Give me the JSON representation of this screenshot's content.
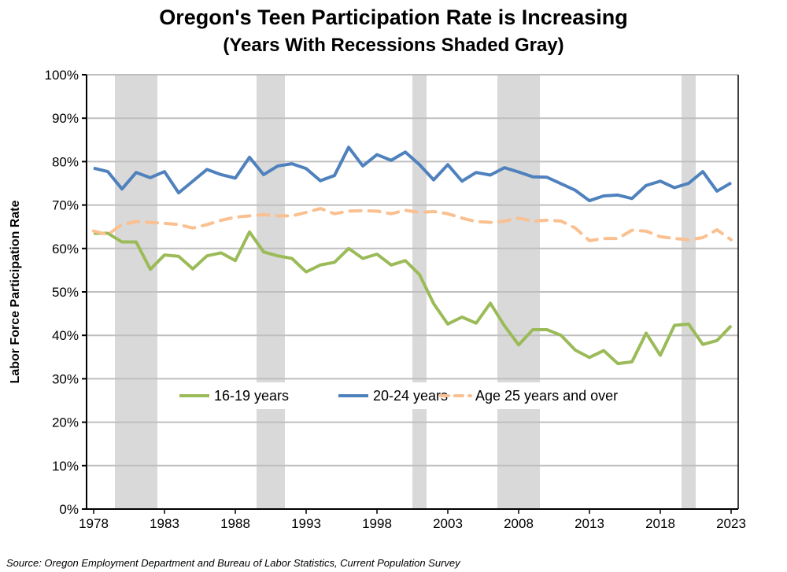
{
  "chart_data": {
    "type": "line",
    "title": "Oregon's Teen Participation Rate is Increasing",
    "subtitle": "(Years With Recessions Shaded Gray)",
    "ylabel": "Labor Force Participation Rate",
    "xlabel": "",
    "source": "Source: Oregon Employment Department and Bureau of Labor Statistics, Current Population Survey",
    "ylim": [
      0,
      100
    ],
    "yticks": [
      "0%",
      "10%",
      "20%",
      "30%",
      "40%",
      "50%",
      "60%",
      "70%",
      "80%",
      "90%",
      "100%"
    ],
    "xticks": [
      "1978",
      "1983",
      "1988",
      "1993",
      "1998",
      "2003",
      "2008",
      "2013",
      "2018",
      "2023"
    ],
    "x_start": 1978,
    "x_end": 2023,
    "grid": "horizontal",
    "legend_position": "bottom-inside",
    "recession_years": [
      [
        1980,
        1982
      ],
      [
        1990,
        1991
      ],
      [
        2001,
        2001
      ],
      [
        2007,
        2009
      ],
      [
        2020,
        2020
      ]
    ],
    "recession_color": "#d9d9d9",
    "series": [
      {
        "name": "16-19 years",
        "color": "#9bbb59",
        "dash": false,
        "values": [
          63.5,
          63.5,
          61.5,
          61.5,
          55.2,
          58.5,
          58.2,
          55.3,
          58.3,
          59,
          57.2,
          63.8,
          59.2,
          58.3,
          57.7,
          54.6,
          56.2,
          56.8,
          60,
          57.7,
          58.7,
          56.2,
          57.2,
          54,
          47.3,
          42.6,
          44.2,
          42.8,
          47.4,
          42.2,
          37.8,
          41.3,
          41.3,
          40,
          36.6,
          34.9,
          36.5,
          33.5,
          33.9,
          40.5,
          35.4,
          42.3,
          42.6,
          37.9,
          38.8,
          42.2
        ]
      },
      {
        "name": "20-24 years",
        "color": "#4f81bd",
        "dash": false,
        "values": [
          78.5,
          77.7,
          73.7,
          77.5,
          76.3,
          77.7,
          72.8,
          75.5,
          78.2,
          77,
          76.2,
          81,
          77,
          79,
          79.5,
          78.4,
          75.6,
          76.8,
          83.3,
          79,
          81.6,
          80.3,
          82.2,
          79.3,
          75.8,
          79.3,
          75.5,
          77.5,
          76.9,
          78.6,
          77.6,
          76.5,
          76.4,
          74.9,
          73.4,
          71,
          72.1,
          72.3,
          71.5,
          74.5,
          75.5,
          74,
          75,
          77.7,
          73.2,
          75.1
        ]
      },
      {
        "name": "Age 25 years and over",
        "color": "#fac090",
        "dash": true,
        "values": [
          64,
          63.2,
          65.5,
          66.2,
          66,
          65.8,
          65.5,
          64.7,
          65.5,
          66.5,
          67.2,
          67.5,
          67.8,
          67.5,
          67.5,
          68.3,
          69.2,
          68,
          68.6,
          68.7,
          68.6,
          68,
          68.8,
          68.3,
          68.5,
          68,
          67,
          66.2,
          66,
          66.3,
          67,
          66.3,
          66.5,
          66.3,
          64.7,
          61.8,
          62.3,
          62.3,
          64.2,
          64,
          62.7,
          62.3,
          62,
          62.5,
          64.3,
          62
        ]
      }
    ]
  }
}
